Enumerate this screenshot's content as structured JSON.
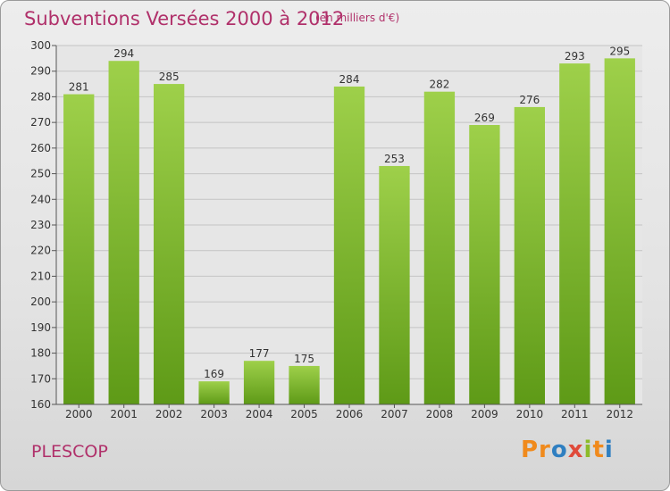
{
  "chart_data": {
    "type": "bar",
    "title": "Subventions Versées 2000 à 2012",
    "subtitle": "(en milliers d'€)",
    "categories": [
      "2000",
      "2001",
      "2002",
      "2003",
      "2004",
      "2005",
      "2006",
      "2007",
      "2008",
      "2009",
      "2010",
      "2011",
      "2012"
    ],
    "values": [
      281,
      294,
      285,
      169,
      177,
      175,
      284,
      253,
      282,
      269,
      276,
      293,
      295
    ],
    "ylim": [
      160,
      300
    ],
    "yticks": [
      160,
      170,
      180,
      190,
      200,
      210,
      220,
      230,
      240,
      250,
      260,
      270,
      280,
      290,
      300
    ],
    "grid": true,
    "bar_color": "#7cb82f"
  },
  "commune": "PLESCOP",
  "logo": {
    "p1": "Pr",
    "p2": "o",
    "p3": "x",
    "p4": "i",
    "p5": "t",
    "p6": "i"
  }
}
